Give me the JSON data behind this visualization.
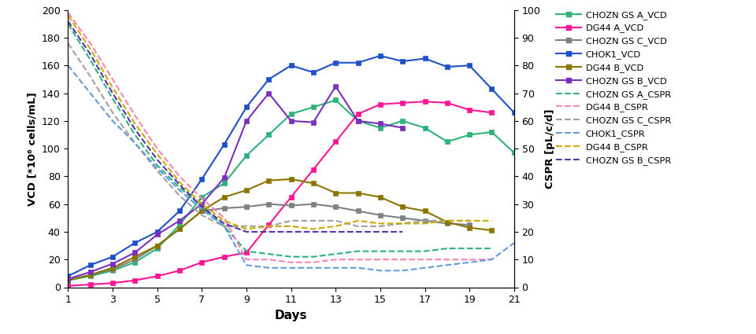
{
  "days": [
    1,
    2,
    3,
    4,
    5,
    6,
    7,
    8,
    9,
    10,
    11,
    12,
    13,
    14,
    15,
    16,
    17,
    18,
    19,
    20,
    21
  ],
  "CHOZN_GS_A_VCD": [
    5,
    8,
    12,
    18,
    28,
    45,
    65,
    75,
    95,
    110,
    125,
    130,
    135,
    120,
    115,
    120,
    115,
    105,
    110,
    112,
    97
  ],
  "DG44_A_VCD": [
    1,
    2,
    3,
    5,
    8,
    12,
    18,
    22,
    25,
    45,
    65,
    85,
    105,
    125,
    132,
    133,
    134,
    133,
    128,
    126,
    null
  ],
  "CHOZN_GS_C_VCD": [
    5,
    9,
    13,
    20,
    30,
    42,
    55,
    57,
    58,
    60,
    59,
    60,
    58,
    55,
    52,
    50,
    48,
    46,
    45,
    null,
    null
  ],
  "CHOK1_VCD": [
    8,
    16,
    22,
    32,
    40,
    55,
    78,
    103,
    130,
    150,
    160,
    155,
    162,
    162,
    167,
    163,
    165,
    159,
    160,
    143,
    126
  ],
  "DG44_B_VCD": [
    5,
    9,
    14,
    22,
    30,
    42,
    55,
    65,
    70,
    77,
    78,
    75,
    68,
    68,
    65,
    58,
    55,
    47,
    43,
    41,
    null
  ],
  "CHOZN_GS_B_VCD": [
    6,
    11,
    17,
    25,
    38,
    48,
    60,
    79,
    120,
    140,
    120,
    119,
    145,
    120,
    118,
    115,
    null,
    null,
    null,
    null,
    null
  ],
  "CHOZN_GS_A_CSPR_x": [
    1,
    2,
    3,
    4,
    5,
    6,
    7,
    8,
    9,
    10,
    11,
    12,
    13,
    14,
    15,
    16,
    17,
    18,
    19,
    20
  ],
  "CHOZN_GS_A_CSPR_y": [
    95,
    82,
    68,
    55,
    44,
    36,
    29,
    22,
    13,
    12,
    11,
    11,
    12,
    13,
    13,
    13,
    13,
    14,
    14,
    14
  ],
  "DG44_B_CSPR_x": [
    1,
    2,
    3,
    4,
    5,
    6,
    7,
    8,
    9,
    10,
    11,
    12,
    13,
    14,
    15,
    16,
    17,
    18,
    19,
    20
  ],
  "DG44_B_CSPR_y": [
    99,
    88,
    75,
    62,
    50,
    40,
    32,
    25,
    10,
    10,
    9,
    9,
    10,
    10,
    10,
    10,
    10,
    10,
    10,
    10
  ],
  "CHOZN_GS_C_CSPR_x": [
    1,
    2,
    3,
    4,
    5,
    6,
    7,
    8,
    9,
    10,
    11,
    12,
    13,
    14,
    15,
    16,
    17,
    18,
    19
  ],
  "CHOZN_GS_C_CSPR_y": [
    88,
    76,
    63,
    52,
    42,
    33,
    26,
    22,
    22,
    22,
    24,
    24,
    24,
    22,
    22,
    23,
    24,
    24,
    24
  ],
  "CHOK1_CSPR_x": [
    1,
    2,
    3,
    4,
    5,
    6,
    7,
    8,
    9,
    10,
    11,
    12,
    13,
    14,
    15,
    16,
    17,
    18,
    19,
    20,
    21
  ],
  "CHOK1_CSPR_y": [
    80,
    70,
    60,
    52,
    43,
    35,
    28,
    22,
    8,
    7,
    7,
    7,
    7,
    7,
    6,
    6,
    7,
    8,
    9,
    10,
    16
  ],
  "DG44_B2_CSPR_x": [
    1,
    2,
    3,
    4,
    5,
    6,
    7,
    8,
    9,
    10,
    11,
    12,
    13,
    14,
    15,
    16,
    17,
    18,
    19,
    20
  ],
  "DG44_B2_CSPR_y": [
    98,
    86,
    72,
    59,
    48,
    38,
    30,
    24,
    21,
    22,
    22,
    21,
    22,
    24,
    23,
    23,
    23,
    24,
    24,
    24
  ],
  "CHOZN_GS_B_CSPR_x": [
    1,
    2,
    3,
    4,
    5,
    6,
    7,
    8,
    9,
    10,
    11,
    12,
    13,
    14,
    15,
    16
  ],
  "CHOZN_GS_B_CSPR_y": [
    96,
    84,
    70,
    57,
    46,
    37,
    29,
    23,
    20,
    20,
    20,
    20,
    20,
    20,
    20,
    20
  ],
  "colors": {
    "CHOZN_GS_A": "#2db37a",
    "DG44_A": "#ff1493",
    "CHOZN_GS_C": "#808080",
    "CHOK1": "#1e50c8",
    "DG44_B": "#8b7500",
    "CHOZN_GS_B": "#7b2fbe"
  },
  "cspr_colors": {
    "CHOZN_GS_A_CSPR": "#2db37a",
    "DG44_B_CSPR": "#ff82b0",
    "CHOZN_GS_C_CSPR": "#a0a0a0",
    "CHOK1_CSPR": "#6699dd",
    "DG44_B2_CSPR": "#ccaa00",
    "CHOZN_GS_B_CSPR": "#5533aa"
  },
  "ylabel_left": "VCD [*10⁶ cells/mL]",
  "ylabel_right": "CSPR [pL/c/d]",
  "xlabel": "Days",
  "xlim": [
    1,
    21
  ],
  "ylim_left": [
    0,
    200
  ],
  "ylim_right": [
    0,
    100
  ],
  "xticks": [
    1,
    3,
    5,
    7,
    9,
    11,
    13,
    15,
    17,
    19,
    21
  ],
  "yticks_left": [
    0,
    20,
    40,
    60,
    80,
    100,
    120,
    140,
    160,
    180,
    200
  ],
  "yticks_right": [
    0,
    10,
    20,
    30,
    40,
    50,
    60,
    70,
    80,
    90,
    100
  ],
  "vcd_legend": [
    "CHOZN GS A_VCD",
    "DG44 A_VCD",
    "CHOZN GS C_VCD",
    "CHOK1_VCD",
    "DG44 B_VCD",
    "CHOZN GS B_VCD"
  ],
  "vcd_ckeys": [
    "CHOZN_GS_A",
    "DG44_A",
    "CHOZN_GS_C",
    "CHOK1",
    "DG44_B",
    "CHOZN_GS_B"
  ],
  "cspr_legend": [
    "CHOZN GS A_CSPR",
    "DG44 B_CSPR",
    "CHOZN GS C_CSPR",
    "CHOK1_CSPR",
    "DG44 B_CSPR",
    "CHOZN GS B_CSPR"
  ],
  "cspr_ckeys": [
    "CHOZN_GS_A_CSPR",
    "DG44_B_CSPR",
    "CHOZN_GS_C_CSPR",
    "CHOK1_CSPR",
    "DG44_B2_CSPR",
    "CHOZN_GS_B_CSPR"
  ]
}
